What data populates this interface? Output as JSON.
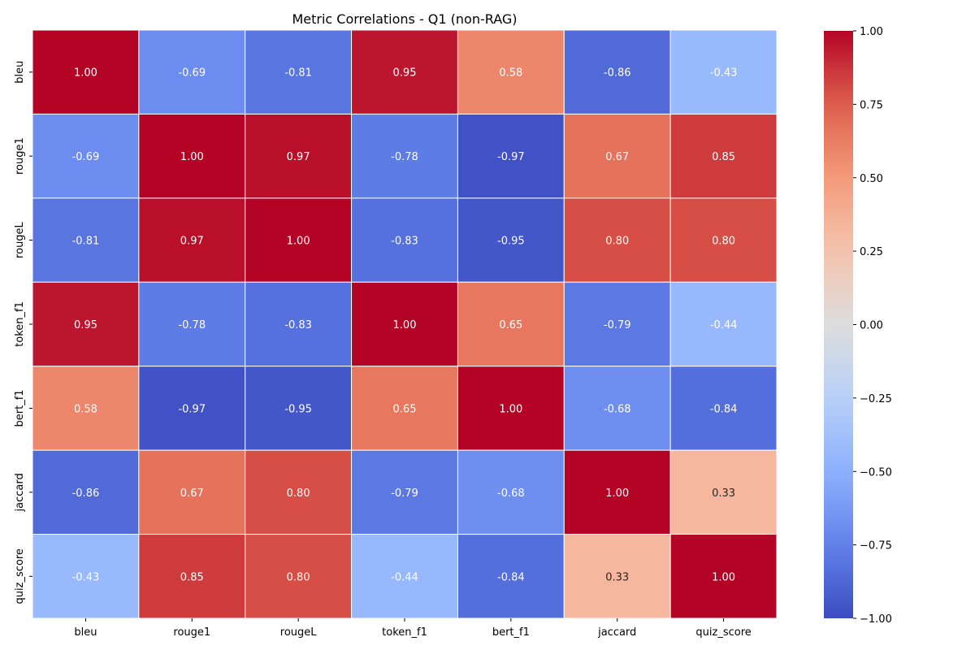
{
  "chart_data": {
    "type": "heatmap",
    "title": "Metric Correlations - Q1 (non-RAG)",
    "xlabel": "",
    "ylabel": "",
    "x_categories": [
      "bleu",
      "rouge1",
      "rougeL",
      "token_f1",
      "bert_f1",
      "jaccard",
      "quiz_score"
    ],
    "y_categories": [
      "bleu",
      "rouge1",
      "rougeL",
      "token_f1",
      "bert_f1",
      "jaccard",
      "quiz_score"
    ],
    "values": [
      [
        1.0,
        -0.69,
        -0.81,
        0.95,
        0.58,
        -0.86,
        -0.43
      ],
      [
        -0.69,
        1.0,
        0.97,
        -0.78,
        -0.97,
        0.67,
        0.85
      ],
      [
        -0.81,
        0.97,
        1.0,
        -0.83,
        -0.95,
        0.8,
        0.8
      ],
      [
        0.95,
        -0.78,
        -0.83,
        1.0,
        0.65,
        -0.79,
        -0.44
      ],
      [
        0.58,
        -0.97,
        -0.95,
        0.65,
        1.0,
        -0.68,
        -0.84
      ],
      [
        -0.86,
        0.67,
        0.8,
        -0.79,
        -0.68,
        1.0,
        0.33
      ],
      [
        -0.43,
        0.85,
        0.8,
        -0.44,
        -0.84,
        0.33,
        1.0
      ]
    ],
    "labels": [
      [
        "1.00",
        "-0.69",
        "-0.81",
        "0.95",
        "0.58",
        "-0.86",
        "-0.43"
      ],
      [
        "-0.69",
        "1.00",
        "0.97",
        "-0.78",
        "-0.97",
        "0.67",
        "0.85"
      ],
      [
        "-0.81",
        "0.97",
        "1.00",
        "-0.83",
        "-0.95",
        "0.80",
        "0.80"
      ],
      [
        "0.95",
        "-0.78",
        "-0.83",
        "1.00",
        "0.65",
        "-0.79",
        "-0.44"
      ],
      [
        "0.58",
        "-0.97",
        "-0.95",
        "0.65",
        "1.00",
        "-0.68",
        "-0.84"
      ],
      [
        "-0.86",
        "0.67",
        "0.80",
        "-0.79",
        "-0.68",
        "1.00",
        "0.33"
      ],
      [
        "-0.43",
        "0.85",
        "0.80",
        "-0.44",
        "-0.84",
        "0.33",
        "1.00"
      ]
    ],
    "vmin": -1.0,
    "vmax": 1.0,
    "colormap": "coolwarm",
    "colorbar": {
      "ticks": [
        1.0,
        0.75,
        0.5,
        0.25,
        0.0,
        -0.25,
        -0.5,
        -0.75,
        -1.0
      ],
      "tick_labels": [
        "1.00",
        "0.75",
        "0.50",
        "0.25",
        "0.00",
        "−0.25",
        "−0.50",
        "−0.75",
        "−1.00"
      ],
      "placement": "right"
    },
    "grid": false,
    "cell_border_color": "#ffffff"
  }
}
